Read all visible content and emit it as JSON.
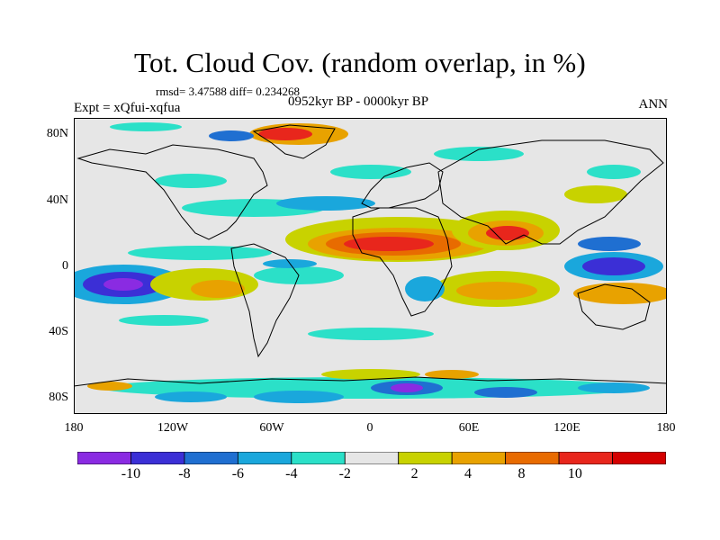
{
  "title": "Tot. Cloud Cov. (random overlap, in %)",
  "stats": "rmsd= 3.47588 diff= 0.234268",
  "experiment": "Expt = xQfui-xqfua",
  "period": "0952kyr BP - 0000kyr BP",
  "season": "ANN",
  "map": {
    "projection": "cylindrical-equidistant",
    "lon_range": [
      -180,
      180
    ],
    "lat_range": [
      -90,
      90
    ],
    "background_color": "#e6e6e6",
    "lat_ticks": [
      "80N",
      "40N",
      "0",
      "40S",
      "80S"
    ],
    "lon_ticks": [
      "180",
      "120W",
      "60W",
      "0",
      "60E",
      "120E",
      "180"
    ]
  },
  "colorbar": {
    "labels": [
      "-10",
      "-8",
      "-6",
      "-4",
      "-2",
      "2",
      "4",
      "8",
      "10"
    ],
    "colors": [
      "#8a2be2",
      "#3b2fd6",
      "#1f6fd1",
      "#1aa7dc",
      "#2be0c8",
      "#e6e6e6",
      "#c8d200",
      "#e8a200",
      "#e86b00",
      "#e8261c",
      "#d40000"
    ]
  },
  "anomaly_regions": [
    {
      "label": "tropical-africa-arabia-increase",
      "level": 10
    },
    {
      "label": "south-asia-increase",
      "level": 8
    },
    {
      "label": "central-pacific-south-decrease",
      "level": -10
    },
    {
      "label": "west-pacific-decrease",
      "level": -10
    },
    {
      "label": "greenland-increase",
      "level": 10
    },
    {
      "label": "antarctic-coast-mixed",
      "level": -8
    }
  ]
}
